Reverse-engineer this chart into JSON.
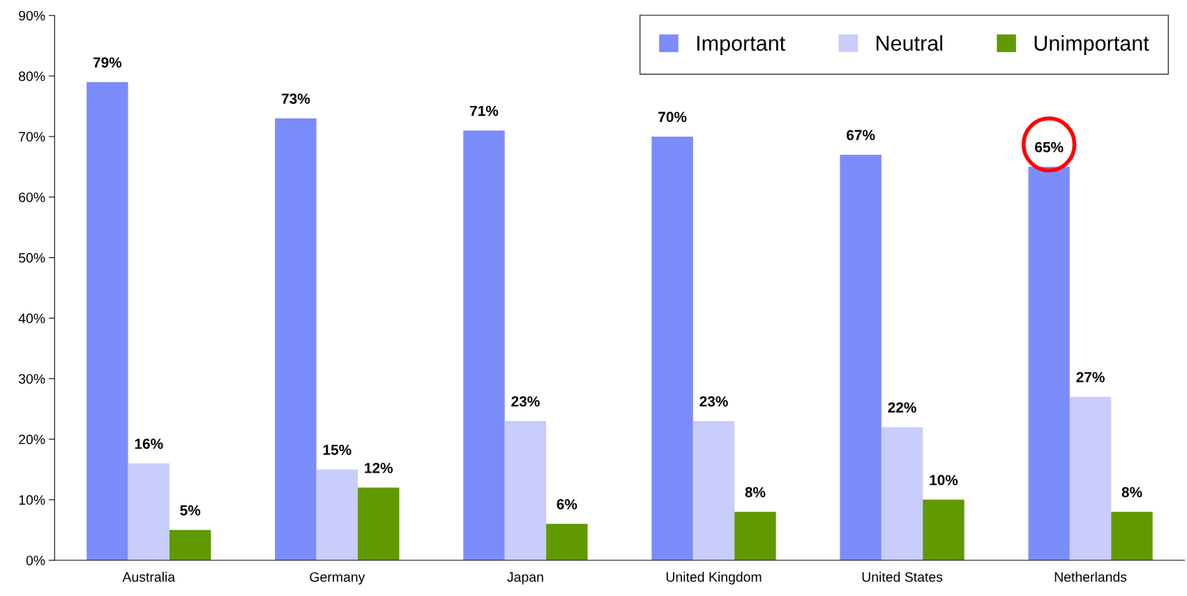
{
  "chart_data": {
    "type": "bar",
    "categories": [
      "Australia",
      "Germany",
      "Japan",
      "United Kingdom",
      "United States",
      "Netherlands"
    ],
    "series": [
      {
        "name": "Important",
        "color": "#7b8cfb",
        "values": [
          79,
          73,
          71,
          70,
          67,
          65
        ]
      },
      {
        "name": "Neutral",
        "color": "#c8cdfb",
        "values": [
          16,
          15,
          23,
          23,
          22,
          27
        ]
      },
      {
        "name": "Unimportant",
        "color": "#609900",
        "values": [
          5,
          12,
          6,
          8,
          10,
          8
        ]
      }
    ],
    "ylim": [
      0,
      90
    ],
    "yticks": [
      {
        "value": 0,
        "label": "0%"
      },
      {
        "value": 10,
        "label": "10%"
      },
      {
        "value": 20,
        "label": "20%"
      },
      {
        "value": 30,
        "label": "30%"
      },
      {
        "value": 40,
        "label": "40%"
      },
      {
        "value": 50,
        "label": "50%"
      },
      {
        "value": 60,
        "label": "60%"
      },
      {
        "value": 70,
        "label": "70%"
      },
      {
        "value": 80,
        "label": "80%"
      },
      {
        "value": 90,
        "label": "90%"
      }
    ],
    "value_labels": [
      [
        "79%",
        "73%",
        "71%",
        "70%",
        "67%",
        "65%"
      ],
      [
        "16%",
        "15%",
        "23%",
        "23%",
        "22%",
        "27%"
      ],
      [
        "5%",
        "12%",
        "6%",
        "8%",
        "10%",
        "8%"
      ]
    ],
    "grid": false,
    "legend": "top right"
  }
}
